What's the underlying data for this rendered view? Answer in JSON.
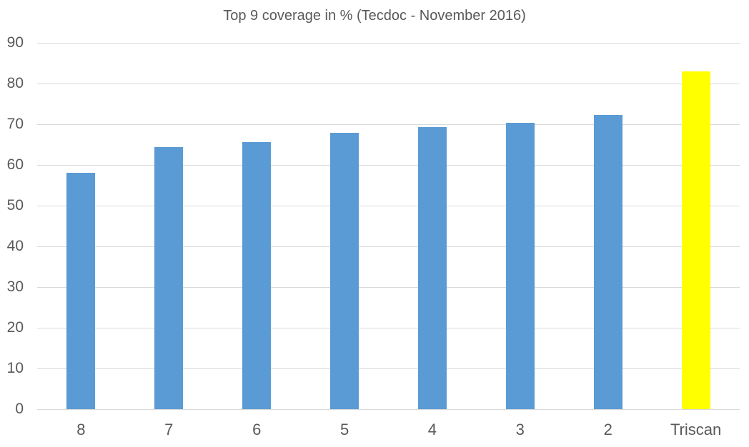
{
  "chart_data": {
    "type": "bar",
    "title": "Top 9 coverage in % (Tecdoc - November 2016)",
    "categories": [
      "8",
      "7",
      "6",
      "5",
      "4",
      "3",
      "2",
      "Triscan"
    ],
    "values": [
      58.1,
      64.4,
      65.7,
      67.9,
      69.3,
      70.3,
      72.3,
      83.0
    ],
    "bar_colors": [
      "#5B9BD5",
      "#5B9BD5",
      "#5B9BD5",
      "#5B9BD5",
      "#5B9BD5",
      "#5B9BD5",
      "#5B9BD5",
      "#FFFF00"
    ],
    "xlabel": "",
    "ylabel": "",
    "ylim": [
      0,
      90
    ],
    "y_ticks": [
      0,
      10,
      20,
      30,
      40,
      50,
      60,
      70,
      80,
      90
    ],
    "grid": true,
    "legend": false,
    "gridline_color": "#D9D9D9",
    "text_color": "#595959",
    "background_color": "#FFFFFF",
    "highlight_category": "Triscan",
    "highlight_color": "#FFFF00",
    "series_color": "#5B9BD5"
  }
}
